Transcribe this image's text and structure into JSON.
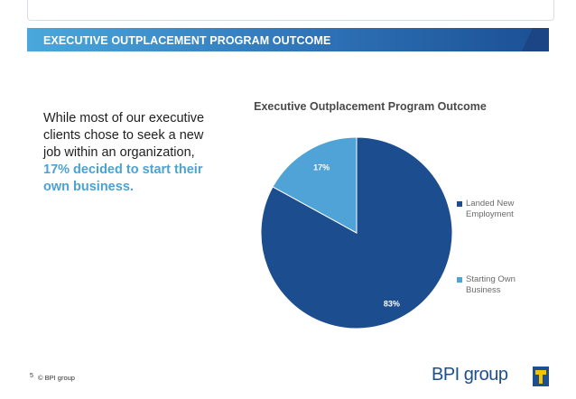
{
  "header": {
    "title": "EXECUTIVE OUTPLACEMENT PROGRAM OUTCOME"
  },
  "body": {
    "text_plain": "While most of our executive clients chose to seek a new job within an organization, ",
    "text_highlight": "17% decided to start their own business."
  },
  "chart_data": {
    "type": "pie",
    "title": "Executive Outplacement Program Outcome",
    "slices": [
      {
        "label": "Landed New Employment",
        "value": 83,
        "display": "83%",
        "color": "#1c4d8f"
      },
      {
        "label": "Starting Own Business",
        "value": 17,
        "display": "17%",
        "color": "#4fa3d6"
      }
    ],
    "legend_position": "right"
  },
  "footer": {
    "page_number": "5",
    "copyright": "© BPI group",
    "logo_text": "BPI group"
  },
  "colors": {
    "brand_blue": "#1c4d8f",
    "accent_light_blue": "#4fa3d6",
    "logo_yellow": "#f5c400"
  }
}
